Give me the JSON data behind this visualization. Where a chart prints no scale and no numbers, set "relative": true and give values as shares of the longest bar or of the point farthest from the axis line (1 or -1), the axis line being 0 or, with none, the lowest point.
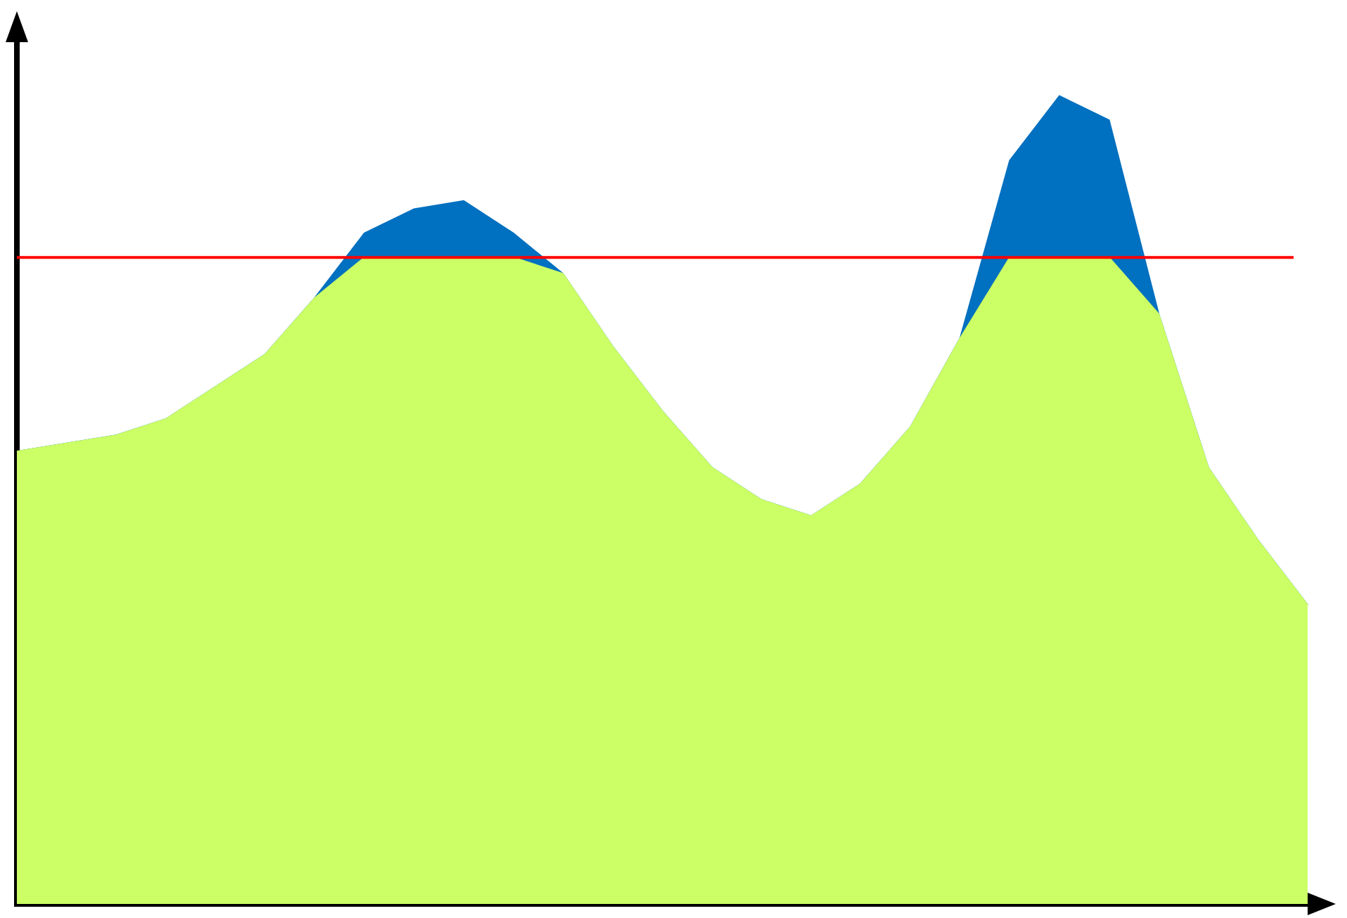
{
  "chart_data": {
    "type": "area",
    "relative": true,
    "categories": [
      null,
      null,
      null,
      null,
      null,
      null,
      null,
      null,
      null,
      null,
      null,
      null,
      null,
      null,
      null,
      null,
      null,
      null,
      null,
      null,
      null,
      null,
      null,
      null,
      null,
      null,
      null
    ],
    "series": [
      {
        "color": "#0070c0",
        "values": [
          0.56,
          0.57,
          0.58,
          0.6,
          0.64,
          0.68,
          0.75,
          0.83,
          0.86,
          0.87,
          0.83,
          0.78,
          0.69,
          0.61,
          0.54,
          0.5,
          0.48,
          0.52,
          0.59,
          0.7,
          0.92,
          1,
          0.97,
          0.73,
          0.54,
          0.45,
          0.37
        ]
      },
      {
        "color": "#ccff66",
        "values": [
          0.56,
          0.57,
          0.58,
          0.6,
          0.64,
          0.68,
          0.75,
          0.8,
          0.8,
          0.8,
          0.8,
          0.78,
          0.69,
          0.61,
          0.54,
          0.5,
          0.48,
          0.52,
          0.59,
          0.7,
          0.8,
          0.8,
          0.8,
          0.73,
          0.54,
          0.45,
          0.37
        ]
      }
    ],
    "ref_lines": [
      {
        "axis": "y",
        "value": 0.8,
        "color": "#ff0000"
      }
    ],
    "marker": "none",
    "grid": false,
    "legend": false
  }
}
